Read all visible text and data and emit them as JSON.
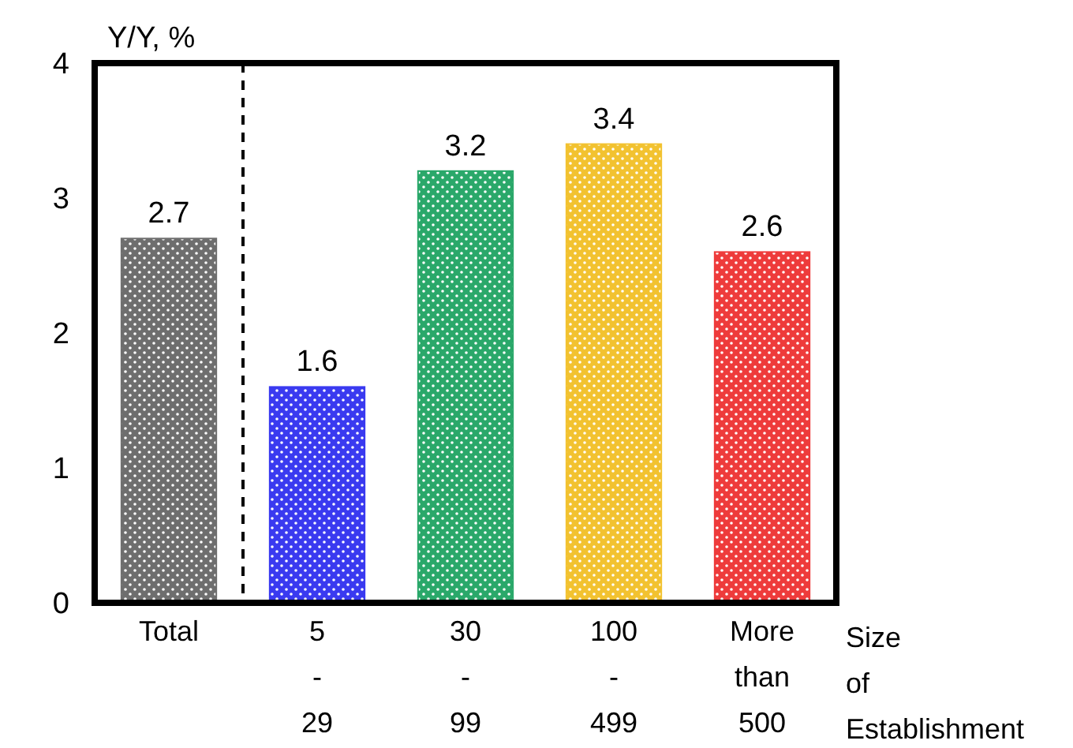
{
  "chart_data": {
    "type": "bar",
    "ylabel": "Y/Y, %",
    "xlabel": "Size of Establishment",
    "categories": [
      "Total",
      "5\n-\n29",
      "30\n-\n99",
      "100\n-\n499",
      "More\nthan\n500"
    ],
    "values": [
      2.7,
      1.6,
      3.2,
      3.4,
      2.6
    ],
    "colors": [
      "#6e6e6e",
      "#3a3af0",
      "#2aa86a",
      "#f2c230",
      "#ee3b3b"
    ],
    "ylim": [
      0,
      4
    ],
    "yticks": [
      0,
      1,
      2,
      3,
      4
    ],
    "grid": false,
    "data_labels": true
  }
}
